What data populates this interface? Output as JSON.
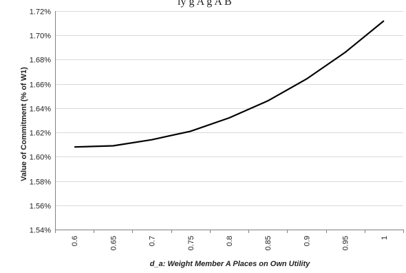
{
  "top_fragment": "ly  g    A                g      A   B",
  "chart_data": {
    "type": "line",
    "x": [
      0.6,
      0.65,
      0.7,
      0.75,
      0.8,
      0.85,
      0.9,
      0.95,
      1
    ],
    "x_tick_labels": [
      "0.6",
      "0.65",
      "0.7",
      "0.75",
      "0.8",
      "0.85",
      "0.9",
      "0.95",
      "1"
    ],
    "series": [
      {
        "values": [
          1.608,
          1.609,
          1.614,
          1.621,
          1.632,
          1.646,
          1.664,
          1.686,
          1.712
        ]
      }
    ],
    "ylim": [
      1.54,
      1.72
    ],
    "y_ticks": [
      1.54,
      1.56,
      1.58,
      1.6,
      1.62,
      1.64,
      1.66,
      1.68,
      1.7,
      1.72
    ],
    "y_tick_labels": [
      "1.54%",
      "1.56%",
      "1.58%",
      "1.60%",
      "1.62%",
      "1.64%",
      "1.66%",
      "1.68%",
      "1.70%",
      "1.72%"
    ],
    "xlabel": "d_a: Weight Member A Places on Own Utility",
    "ylabel": "Value of Commitment (% of W1)",
    "grid": true,
    "line_color": "#000000",
    "grid_color": "#d9d9d9"
  }
}
